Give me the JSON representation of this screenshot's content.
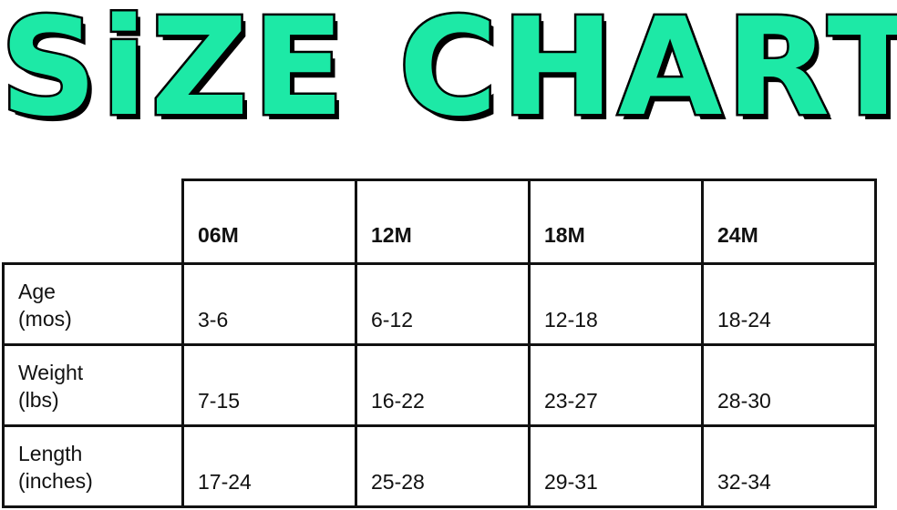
{
  "title": "SiZE CHART",
  "colors": {
    "title_fill": "#1de9a6",
    "title_outline": "#000000"
  },
  "table": {
    "columns": [
      "06M",
      "12M",
      "18M",
      "24M"
    ],
    "rows": [
      {
        "label": "Age\n(mos)",
        "values": [
          "3-6",
          "6-12",
          "12-18",
          "18-24"
        ]
      },
      {
        "label": "Weight\n(lbs)",
        "values": [
          "7-15",
          "16-22",
          "23-27",
          "28-30"
        ]
      },
      {
        "label": "Length\n(inches)",
        "values": [
          "17-24",
          "25-28",
          "29-31",
          "32-34"
        ]
      }
    ]
  }
}
